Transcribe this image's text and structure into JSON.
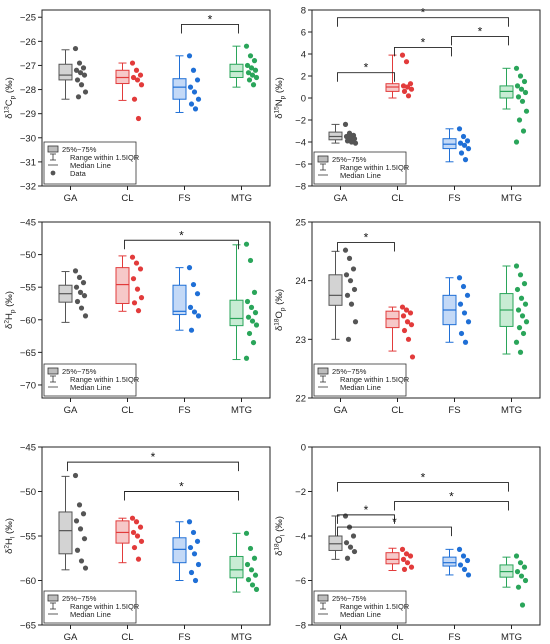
{
  "chart_data": [
    {
      "type": "box",
      "ylabel_main": "δ",
      "ylabel_sup": "13",
      "ylabel_sym": "C",
      "ylabel_sub": "p",
      "ylabel_unit": " (‰)",
      "categories": [
        "GA",
        "CL",
        "FS",
        "MTG"
      ],
      "ylim": [
        -32,
        -24.7
      ],
      "yticks": [
        -32,
        -31,
        -30,
        -29,
        -28,
        -27,
        -26,
        -25
      ],
      "boxes": [
        {
          "q1": -27.6,
          "median": -27.4,
          "q3": -26.95,
          "whisker_low": -28.4,
          "whisker_high": -26.35,
          "points": [
            -26.3,
            -26.9,
            -27.1,
            -27.2,
            -27.3,
            -27.4,
            -27.6,
            -27.8,
            -28.1,
            -28.3
          ]
        },
        {
          "q1": -27.75,
          "median": -27.5,
          "q3": -27.2,
          "whisker_low": -28.45,
          "whisker_high": -26.9,
          "points": [
            -26.9,
            -27.2,
            -27.4,
            -27.5,
            -27.6,
            -27.8,
            -28.4,
            -29.2
          ]
        },
        {
          "q1": -28.4,
          "median": -27.9,
          "q3": -27.55,
          "whisker_low": -28.95,
          "whisker_high": -26.6,
          "points": [
            -26.6,
            -27.2,
            -27.6,
            -27.9,
            -28.1,
            -28.4,
            -28.6,
            -28.8
          ]
        },
        {
          "q1": -27.5,
          "median": -27.25,
          "q3": -26.95,
          "whisker_low": -27.9,
          "whisker_high": -26.2,
          "points": [
            -26.2,
            -26.6,
            -26.8,
            -27.0,
            -27.1,
            -27.2,
            -27.3,
            -27.4,
            -27.5,
            -27.6,
            -27.8
          ]
        }
      ],
      "significance": [
        {
          "from": 2,
          "to": 3,
          "y": -25.3
        }
      ],
      "legend": [
        "25%~75%",
        "Range within 1.5IQR",
        "Median Line",
        "Data"
      ]
    },
    {
      "type": "box",
      "ylabel_main": "δ",
      "ylabel_sup": "15",
      "ylabel_sym": "N",
      "ylabel_sub": "p",
      "ylabel_unit": " (‰)",
      "categories": [
        "GA",
        "CL",
        "FS",
        "MTG"
      ],
      "ylim": [
        -8,
        8
      ],
      "yticks": [
        -8,
        -6,
        -4,
        -2,
        0,
        2,
        4,
        6,
        8
      ],
      "boxes": [
        {
          "q1": -3.8,
          "median": -3.5,
          "q3": -3.1,
          "whisker_low": -4.1,
          "whisker_high": -2.4,
          "points": [
            -2.4,
            -3.2,
            -3.4,
            -3.5,
            -3.6,
            -3.7,
            -3.9,
            -4.0,
            -4.1
          ]
        },
        {
          "q1": 0.6,
          "median": 1.0,
          "q3": 1.3,
          "whisker_low": 0.0,
          "whisker_high": 3.9,
          "points": [
            3.9,
            3.3,
            1.3,
            1.1,
            1.0,
            0.8,
            0.6,
            0.2
          ]
        },
        {
          "q1": -4.6,
          "median": -4.2,
          "q3": -3.7,
          "whisker_low": -5.8,
          "whisker_high": -2.8,
          "points": [
            -2.8,
            -3.5,
            -3.9,
            -4.1,
            -4.3,
            -4.6,
            -5.0,
            -5.6
          ]
        },
        {
          "q1": 0.0,
          "median": 0.6,
          "q3": 1.1,
          "whisker_low": -1.0,
          "whisker_high": 2.7,
          "points": [
            2.7,
            2.0,
            1.5,
            1.1,
            0.8,
            0.5,
            0.1,
            -0.3,
            -1.2,
            -2.0,
            -3.0,
            -4.0
          ]
        }
      ],
      "significance": [
        {
          "from": 0,
          "to": 3,
          "y": 7.3
        },
        {
          "from": 0,
          "to": 1,
          "y": 2.3
        },
        {
          "from": 1,
          "to": 2,
          "y": 4.6
        },
        {
          "from": 2,
          "to": 3,
          "y": 5.6
        }
      ],
      "legend": [
        "25%~75%",
        "Range within 1.5IQR",
        "Median Line"
      ]
    },
    {
      "type": "box",
      "ylabel_main": "δ",
      "ylabel_sup": "2",
      "ylabel_sym": "H",
      "ylabel_sub": "p",
      "ylabel_unit": " (‰)",
      "categories": [
        "GA",
        "CL",
        "FS",
        "MTG"
      ],
      "ylim": [
        -72,
        -45
      ],
      "yticks": [
        -70,
        -65,
        -60,
        -55,
        -50,
        -45
      ],
      "boxes": [
        {
          "q1": -57.3,
          "median": -56.0,
          "q3": -54.7,
          "whisker_low": -60.4,
          "whisker_high": -52.6,
          "points": [
            -52.5,
            -53.5,
            -54.3,
            -55.0,
            -55.8,
            -56.3,
            -57.2,
            -58.2,
            -59.4
          ]
        },
        {
          "q1": -57.5,
          "median": -54.6,
          "q3": -52.0,
          "whisker_low": -58.7,
          "whisker_high": -50.2,
          "points": [
            -50.4,
            -51.3,
            -52.2,
            -53.7,
            -55.3,
            -56.6,
            -57.4,
            -58.6
          ]
        },
        {
          "q1": -59.2,
          "median": -58.7,
          "q3": -54.7,
          "whisker_low": -61.6,
          "whisker_high": -52.0,
          "points": [
            -52.0,
            -54.6,
            -56.0,
            -58.1,
            -58.8,
            -59.4,
            -61.6
          ]
        },
        {
          "q1": -60.9,
          "median": -59.8,
          "q3": -57.0,
          "whisker_low": -66.1,
          "whisker_high": -48.5,
          "points": [
            -48.4,
            -50.9,
            -55.8,
            -57.2,
            -58.1,
            -58.9,
            -59.6,
            -60.2,
            -60.8,
            -62.1,
            -63.5,
            -65.9
          ]
        }
      ],
      "significance": [
        {
          "from": 1,
          "to": 3,
          "y": -47.8
        }
      ],
      "legend": [
        "25%~75%",
        "Range within 1.5IQR",
        "Median Line"
      ]
    },
    {
      "type": "box",
      "ylabel_main": "δ",
      "ylabel_sup": "18",
      "ylabel_sym": "O",
      "ylabel_sub": "p",
      "ylabel_unit": " (‰)",
      "categories": [
        "GA",
        "CL",
        "FS",
        "MTG"
      ],
      "ylim": [
        22,
        25
      ],
      "yticks": [
        22,
        23,
        24,
        25
      ],
      "boxes": [
        {
          "q1": 23.58,
          "median": 23.75,
          "q3": 24.1,
          "whisker_low": 23.0,
          "whisker_high": 24.5,
          "points": [
            24.52,
            24.38,
            24.2,
            24.1,
            24.0,
            23.85,
            23.75,
            23.6,
            23.3,
            23.0
          ]
        },
        {
          "q1": 23.2,
          "median": 23.35,
          "q3": 23.48,
          "whisker_low": 22.8,
          "whisker_high": 23.55,
          "points": [
            23.55,
            23.5,
            23.45,
            23.4,
            23.3,
            23.25,
            23.15,
            23.0,
            22.7
          ]
        },
        {
          "q1": 23.25,
          "median": 23.5,
          "q3": 23.75,
          "whisker_low": 22.95,
          "whisker_high": 24.05,
          "points": [
            24.05,
            23.9,
            23.75,
            23.6,
            23.45,
            23.3,
            23.1,
            22.95
          ]
        },
        {
          "q1": 23.22,
          "median": 23.5,
          "q3": 23.78,
          "whisker_low": 22.75,
          "whisker_high": 24.25,
          "points": [
            24.25,
            24.1,
            23.95,
            23.85,
            23.7,
            23.6,
            23.5,
            23.4,
            23.3,
            23.2,
            23.1,
            22.95,
            22.78
          ]
        }
      ],
      "significance": [
        {
          "from": 0,
          "to": 1,
          "y": 24.65
        }
      ],
      "legend": [
        "25%~75%",
        "Range within 1.5IQR",
        "Median Line"
      ]
    },
    {
      "type": "box",
      "ylabel_main": "δ",
      "ylabel_sup": "2",
      "ylabel_sym": "H",
      "ylabel_sub": "l",
      "ylabel_unit": " (‰)",
      "categories": [
        "GA",
        "CL",
        "FS",
        "MTG"
      ],
      "ylim": [
        -65,
        -45
      ],
      "yticks": [
        -65,
        -60,
        -55,
        -50,
        -45
      ],
      "boxes": [
        {
          "q1": -57.0,
          "median": -54.4,
          "q3": -52.3,
          "whisker_low": -58.8,
          "whisker_high": -48.3,
          "points": [
            -48.2,
            -51.5,
            -52.5,
            -53.3,
            -54.2,
            -55.3,
            -56.6,
            -57.8,
            -58.6
          ]
        },
        {
          "q1": -55.8,
          "median": -54.6,
          "q3": -53.3,
          "whisker_low": -58.0,
          "whisker_high": -53.0,
          "points": [
            -53.0,
            -53.4,
            -54.0,
            -54.6,
            -55.0,
            -55.6,
            -56.3,
            -57.6
          ]
        },
        {
          "q1": -58.0,
          "median": -56.5,
          "q3": -55.2,
          "whisker_low": -60.0,
          "whisker_high": -53.4,
          "points": [
            -53.4,
            -54.6,
            -55.6,
            -56.3,
            -57.0,
            -58.2,
            -59.1,
            -60.0
          ]
        },
        {
          "q1": -59.7,
          "median": -58.8,
          "q3": -57.3,
          "whisker_low": -61.3,
          "whisker_high": -54.7,
          "points": [
            -54.7,
            -56.4,
            -57.5,
            -58.2,
            -58.8,
            -59.4,
            -59.9,
            -60.5,
            -61.0
          ]
        }
      ],
      "significance": [
        {
          "from": 0,
          "to": 3,
          "y": -46.7
        },
        {
          "from": 1,
          "to": 3,
          "y": -50.0
        }
      ],
      "legend": [
        "25%~75%",
        "Range within 1.5IQR",
        "Median Line"
      ]
    },
    {
      "type": "box",
      "ylabel_main": "δ",
      "ylabel_sup": "18",
      "ylabel_sym": "O",
      "ylabel_sub": "l",
      "ylabel_unit": " (‰)",
      "categories": [
        "GA",
        "CL",
        "FS",
        "MTG"
      ],
      "ylim": [
        -8,
        0
      ],
      "yticks": [
        -8,
        -6,
        -4,
        -2,
        0
      ],
      "boxes": [
        {
          "q1": -4.65,
          "median": -4.35,
          "q3": -4.0,
          "whisker_low": -5.05,
          "whisker_high": -3.1,
          "points": [
            -3.1,
            -3.6,
            -4.0,
            -4.3,
            -4.5,
            -4.7,
            -5.0
          ]
        },
        {
          "q1": -5.25,
          "median": -5.05,
          "q3": -4.75,
          "whisker_low": -5.55,
          "whisker_high": -4.55,
          "points": [
            -4.6,
            -4.8,
            -4.9,
            -5.05,
            -5.2,
            -5.4,
            -5.5
          ]
        },
        {
          "q1": -5.35,
          "median": -5.2,
          "q3": -4.95,
          "whisker_low": -5.75,
          "whisker_high": -4.6,
          "points": [
            -4.6,
            -4.9,
            -5.1,
            -5.3,
            -5.5,
            -5.75
          ]
        },
        {
          "q1": -5.85,
          "median": -5.6,
          "q3": -5.3,
          "whisker_low": -6.3,
          "whisker_high": -4.95,
          "points": [
            -4.9,
            -5.2,
            -5.4,
            -5.6,
            -5.8,
            -6.0,
            -6.3,
            -7.1
          ]
        }
      ],
      "significance": [
        {
          "from": 0,
          "to": 3,
          "y": -1.6
        },
        {
          "from": 0,
          "to": 1,
          "y": -3.05
        },
        {
          "from": 0,
          "to": 2,
          "y": -3.6
        },
        {
          "from": 1,
          "to": 3,
          "y": -2.45
        }
      ],
      "legend": [
        "25%~75%",
        "Range within 1.5IQR",
        "Median Line"
      ]
    }
  ],
  "style": {
    "colors": [
      "#555555",
      "#e23b3b",
      "#1f6fd6",
      "#2aa55a"
    ],
    "fills": [
      "#d3d3d3",
      "#f6c8c8",
      "#c3d9f7",
      "#c8ecd4"
    ],
    "star": "*"
  }
}
